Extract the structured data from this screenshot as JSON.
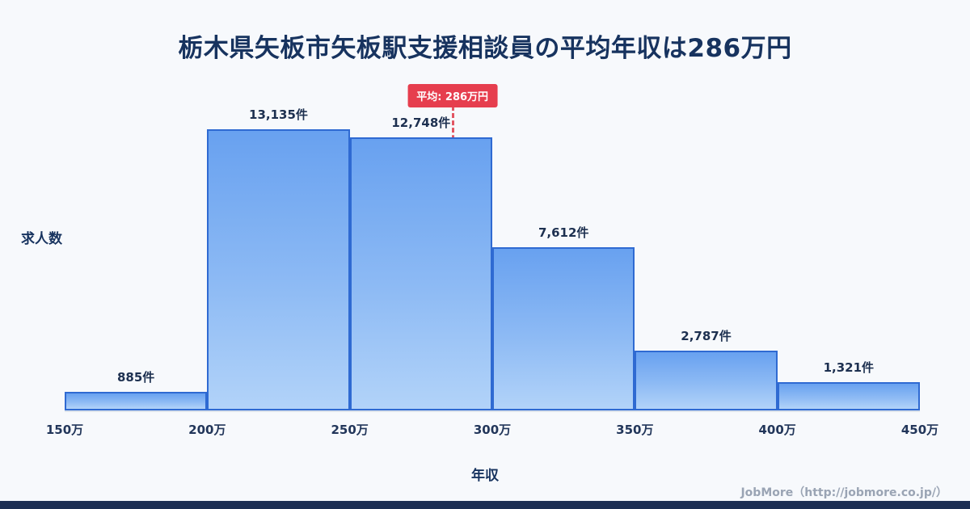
{
  "title": "栃木県矢板市矢板駅支援相談員の平均年収は286万円",
  "chart_data": {
    "type": "bar",
    "title": "栃木県矢板市矢板駅支援相談員の平均年収は286万円",
    "xlabel": "年収",
    "ylabel": "求人数",
    "bin_edges": [
      "150万",
      "200万",
      "250万",
      "300万",
      "350万",
      "400万",
      "450万"
    ],
    "bin_edge_values": [
      150,
      200,
      250,
      300,
      350,
      400,
      450
    ],
    "values": [
      885,
      13135,
      12748,
      7612,
      2787,
      1321
    ],
    "value_labels": [
      "885件",
      "13,135件",
      "12,748件",
      "7,612件",
      "2,787件",
      "1,321件"
    ],
    "ylim": [
      0,
      13135
    ],
    "grid": false,
    "legend": "none",
    "mean": {
      "label": "平均: 286万円",
      "value": 286,
      "x_min": 150,
      "x_max": 450
    },
    "colors": {
      "bar_top": "#68a1f0",
      "bar_bottom": "#b2d3f9",
      "bar_border": "#2f6ad2",
      "mean_line": "#e25562",
      "mean_badge_bg": "#e63e4e",
      "title_text": "#17335f",
      "background": "#f7f9fc",
      "bottom_strip": "#1c2e52"
    }
  },
  "footer": {
    "credit": "JobMore（http://jobmore.co.jp/）"
  }
}
